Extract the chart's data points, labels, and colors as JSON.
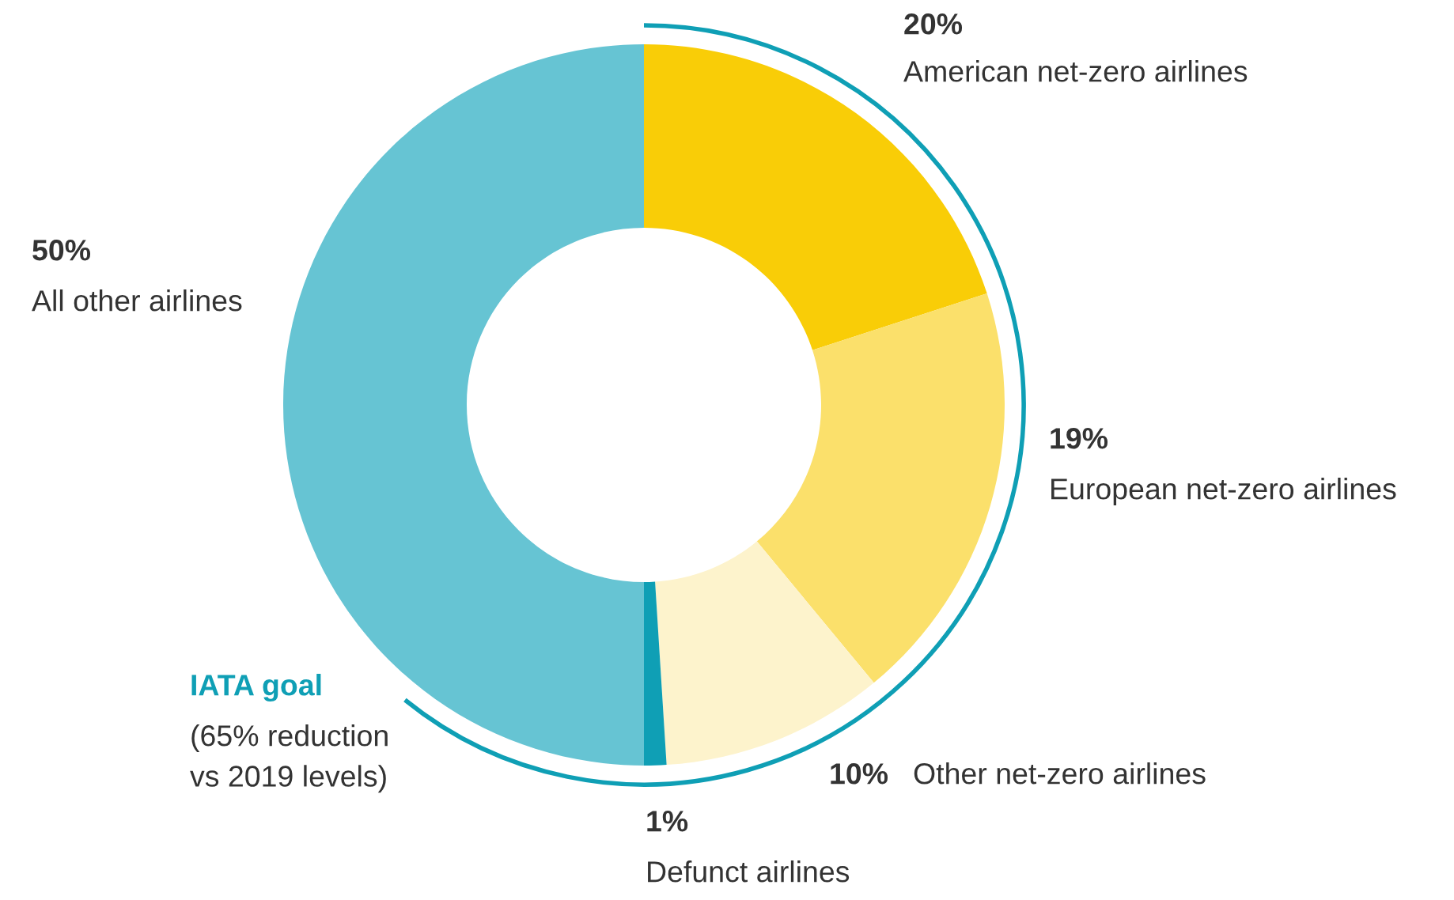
{
  "chart_data": {
    "type": "donut",
    "categories": [
      "American net-zero airlines",
      "European net-zero airlines",
      "Other net-zero airlines",
      "Defunct airlines",
      "All other airlines"
    ],
    "values": [
      20,
      19,
      10,
      1,
      50
    ],
    "value_labels": [
      "20%",
      "19%",
      "10%",
      "1%",
      "50%"
    ],
    "colors": [
      "#f9cd07",
      "#fbe06b",
      "#fdf3cc",
      "#0f9fb5",
      "#66c4d3"
    ],
    "annotations": [
      "IATA goal",
      "(65% reduction\nvs 2019 levels)"
    ],
    "legend": false
  }
}
